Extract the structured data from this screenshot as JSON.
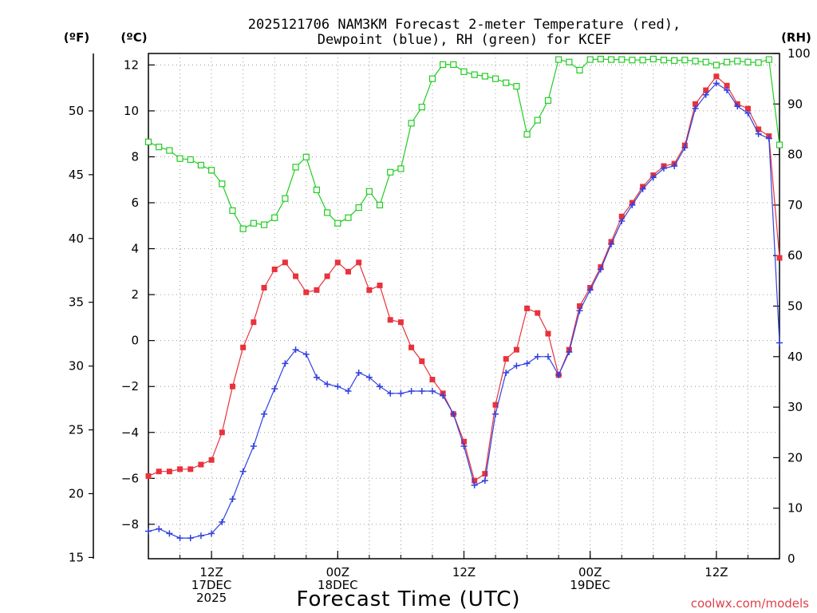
{
  "chart_data": {
    "type": "line",
    "title_line1": "2025121706 NAM3KM Forecast 2-meter Temperature (red),",
    "title_line2": "Dewpoint (blue), RH (green) for KCEF",
    "xlabel": "Forecast Time (UTC)",
    "credit": "coolwx.com/models",
    "left_outer_unit": "(ºF)",
    "left_inner_unit": "(ºC)",
    "right_unit": "(RH)",
    "x_ticks": [
      {
        "hour": 6,
        "lines": [
          "12Z",
          "17DEC",
          "2025"
        ]
      },
      {
        "hour": 18,
        "lines": [
          "00Z",
          "18DEC"
        ]
      },
      {
        "hour": 30,
        "lines": [
          "12Z"
        ]
      },
      {
        "hour": 42,
        "lines": [
          "00Z",
          "19DEC"
        ]
      },
      {
        "hour": 54,
        "lines": [
          "12Z"
        ]
      }
    ],
    "x_range_hours": [
      0,
      60
    ],
    "c_range": [
      -9.5,
      12.5
    ],
    "c_ticks": [
      "-8",
      "-6",
      "-4",
      "-2",
      "0",
      "2",
      "4",
      "6",
      "8",
      "10",
      "12"
    ],
    "f_ticks": [
      "15",
      "20",
      "25",
      "30",
      "35",
      "40",
      "45",
      "50"
    ],
    "rh_range": [
      0,
      100
    ],
    "rh_ticks": [
      "0",
      "10",
      "20",
      "30",
      "40",
      "50",
      "60",
      "70",
      "80",
      "90",
      "100"
    ],
    "grid": true,
    "series": [
      {
        "name": "Temperature",
        "units": "C",
        "color": "#e8323c",
        "marker": "square-filled",
        "values": [
          -5.9,
          -5.7,
          -5.7,
          -5.6,
          -5.6,
          -5.4,
          -5.2,
          -4.0,
          -2.0,
          -0.3,
          0.8,
          2.3,
          3.1,
          3.4,
          2.8,
          2.1,
          2.2,
          2.8,
          3.4,
          3.0,
          3.4,
          2.2,
          2.4,
          0.9,
          0.8,
          -0.3,
          -0.9,
          -1.7,
          -2.3,
          -3.2,
          -4.4,
          -6.1,
          -5.8,
          -2.8,
          -0.8,
          -0.4,
          1.4,
          1.2,
          0.3,
          -1.5,
          -0.4,
          1.5,
          2.3,
          3.2,
          4.3,
          5.4,
          6.0,
          6.7,
          7.2,
          7.6,
          7.7,
          8.5,
          10.3,
          10.9,
          11.5,
          11.1,
          10.3,
          10.1,
          9.2,
          8.9,
          3.6
        ]
      },
      {
        "name": "Dewpoint",
        "units": "C",
        "color": "#3040e0",
        "marker": "plus",
        "values": [
          -8.3,
          -8.2,
          -8.4,
          -8.6,
          -8.6,
          -8.5,
          -8.4,
          -7.9,
          -6.9,
          -5.7,
          -4.6,
          -3.2,
          -2.1,
          -1.0,
          -0.4,
          -0.6,
          -1.6,
          -1.9,
          -2.0,
          -2.2,
          -1.4,
          -1.6,
          -2.0,
          -2.3,
          -2.3,
          -2.2,
          -2.2,
          -2.2,
          -2.4,
          -3.2,
          -4.6,
          -6.3,
          -6.1,
          -3.2,
          -1.4,
          -1.1,
          -1.0,
          -0.7,
          -0.7,
          -1.5,
          -0.5,
          1.3,
          2.2,
          3.1,
          4.2,
          5.2,
          5.9,
          6.6,
          7.1,
          7.5,
          7.6,
          8.4,
          10.1,
          10.7,
          11.2,
          10.9,
          10.2,
          9.9,
          9.0,
          8.8,
          -0.1
        ]
      },
      {
        "name": "RH",
        "units": "%",
        "color": "#22cc22",
        "marker": "square-open",
        "values": [
          82.5,
          81.5,
          80.8,
          79.2,
          79.0,
          77.9,
          76.9,
          74.2,
          68.9,
          65.3,
          66.4,
          66.1,
          67.5,
          71.3,
          77.5,
          79.5,
          73.0,
          68.5,
          66.4,
          67.5,
          69.5,
          72.7,
          70.0,
          76.5,
          77.2,
          86.2,
          89.4,
          95.0,
          97.8,
          97.8,
          96.4,
          95.8,
          95.5,
          95.0,
          94.2,
          93.5,
          84.0,
          86.8,
          90.7,
          98.8,
          98.3,
          96.7,
          98.8,
          98.9,
          98.8,
          98.8,
          98.7,
          98.7,
          98.9,
          98.7,
          98.6,
          98.7,
          98.5,
          98.3,
          97.7,
          98.3,
          98.5,
          98.3,
          98.2,
          98.8,
          81.9
        ]
      }
    ]
  }
}
